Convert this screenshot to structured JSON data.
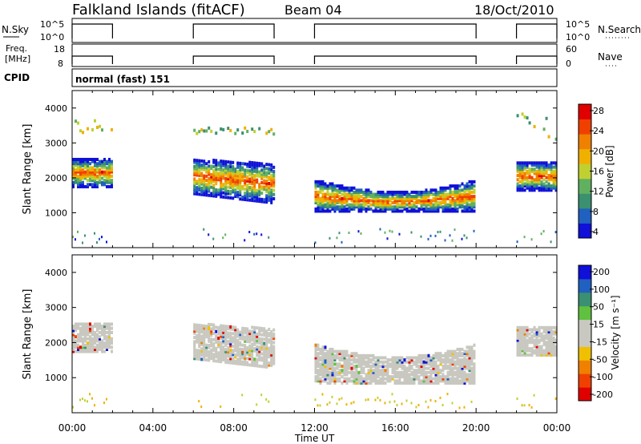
{
  "header": {
    "station": "Falkland Islands (fitACF)",
    "beam": "Beam 04",
    "date": "18/Oct/2010"
  },
  "strip1": {
    "left_label": "N.Sky",
    "right_label": "N.Search",
    "left_ticks": [
      "10^5",
      "10^0"
    ],
    "right_ticks": [
      "10^5",
      "10^0"
    ]
  },
  "strip2": {
    "left_label_1": "Freq.",
    "left_label_2": "[MHz]",
    "left_ticks": [
      "18",
      "8"
    ],
    "right_label": "Nave",
    "right_ticks": [
      "60",
      "0"
    ]
  },
  "cpid": {
    "label": "CPID",
    "value": "normal (fast) 151"
  },
  "x_axis": {
    "label": "Time UT",
    "ticks": [
      "00:00",
      "04:00",
      "08:00",
      "12:00",
      "16:00",
      "20:00",
      "00:00"
    ]
  },
  "colors": {
    "power_scale": [
      "#1010d8",
      "#2060c0",
      "#3a9070",
      "#60b060",
      "#c0d030",
      "#f0b000",
      "#f08000",
      "#f04000",
      "#e00000"
    ],
    "velocity_scale": [
      "#e00000",
      "#f04000",
      "#f08000",
      "#f0c000",
      "#c8c8c0",
      "#c8c8c0",
      "#60c040",
      "#3a9070",
      "#2060c0",
      "#1010d8"
    ]
  },
  "chart_data": [
    {
      "type": "heatmap",
      "title": "",
      "xlabel": "Time UT",
      "ylabel": "Slant Range [km]",
      "xlim": [
        0,
        24
      ],
      "ylim": [
        0,
        4500
      ],
      "y_ticks": [
        1000,
        2000,
        3000,
        4000
      ],
      "colorbar": {
        "label": "Power [dB]",
        "ticks": [
          "28",
          "24",
          "20",
          "16",
          "12",
          "8",
          "4"
        ],
        "range": [
          0,
          30
        ]
      },
      "segments": [
        {
          "time_range": [
            0.0,
            2.0
          ],
          "core_range_km": [
            1700,
            2500
          ],
          "outer_echo_km": [
            3200,
            3600
          ]
        },
        {
          "time_range": [
            6.0,
            10.0
          ],
          "core_range_km": [
            1500,
            2500
          ],
          "outer_echo_km": [
            3200,
            3400
          ]
        },
        {
          "time_range": [
            12.0,
            20.0
          ],
          "core_range_km": [
            1000,
            1900
          ],
          "outer_echo_km": null
        },
        {
          "time_range": [
            22.0,
            24.0
          ],
          "core_range_km": [
            1600,
            2400
          ],
          "outer_echo_km": [
            3000,
            3800
          ]
        }
      ]
    },
    {
      "type": "heatmap",
      "title": "",
      "xlabel": "Time UT",
      "ylabel": "Slant Range [km]",
      "xlim": [
        0,
        24
      ],
      "ylim": [
        0,
        4500
      ],
      "y_ticks": [
        1000,
        2000,
        3000,
        4000
      ],
      "colorbar": {
        "label": "Velocity [m s⁻¹]",
        "ticks": [
          "200",
          "100",
          "50",
          "15",
          "-15",
          "-50",
          "-100",
          "-200"
        ],
        "range": [
          -250,
          250
        ]
      },
      "segments": [
        {
          "time_range": [
            0.0,
            2.0
          ],
          "core_range_km": [
            1700,
            2500
          ]
        },
        {
          "time_range": [
            6.0,
            10.0
          ],
          "core_range_km": [
            1500,
            2500
          ]
        },
        {
          "time_range": [
            12.0,
            20.0
          ],
          "core_range_km": [
            800,
            1900
          ]
        },
        {
          "time_range": [
            22.0,
            24.0
          ],
          "core_range_km": [
            1600,
            2400
          ]
        }
      ]
    }
  ]
}
